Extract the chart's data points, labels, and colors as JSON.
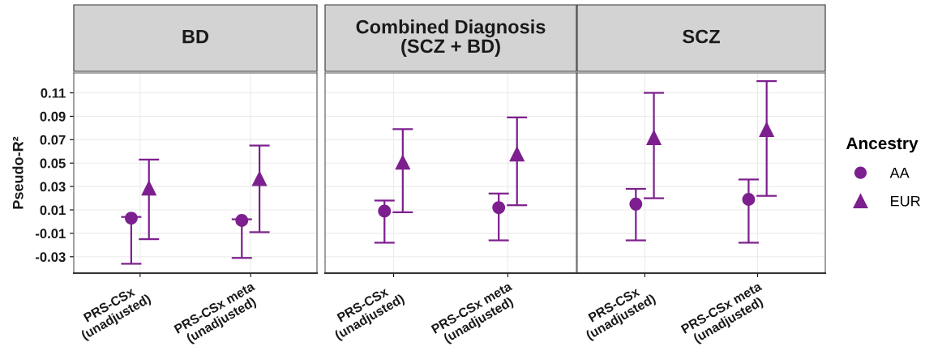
{
  "chart_data": [
    {
      "type": "scatter",
      "title": "BD",
      "ylabel": "Pseudo-R²",
      "categories": [
        "PRS-CSx\n(unadjusted)",
        "PRS-CSx meta\n(unadjusted)"
      ],
      "ylim": [
        -0.044,
        0.127
      ],
      "yticks": [
        -0.03,
        -0.01,
        0.01,
        0.03,
        0.05,
        0.07,
        0.09,
        0.11
      ],
      "grid": true,
      "series": [
        {
          "color": "#7d1f8e",
          "marker": "circle",
          "values": [
            0.003,
            0.001
          ],
          "errors": [
            [
              -0.036,
              0.004
            ],
            [
              -0.031,
              0.002
            ]
          ]
        },
        {
          "color": "#7d1f8e",
          "marker": "triangle",
          "values": [
            0.029,
            0.037
          ],
          "errors": [
            [
              -0.015,
              0.053
            ],
            [
              -0.009,
              0.065
            ]
          ]
        }
      ]
    },
    {
      "type": "scatter",
      "title": "Combined Diagnosis\n(SCZ + BD)",
      "categories": [
        "PRS-CSx\n(unadjusted)",
        "PRS-CSx meta\n(unadjusted)"
      ],
      "ylim": [
        -0.044,
        0.127
      ],
      "yticks": [
        -0.03,
        -0.01,
        0.01,
        0.03,
        0.05,
        0.07,
        0.09,
        0.11
      ],
      "tick_labels": "x",
      "grid": true,
      "series": [
        {
          "color": "#7d1f8e",
          "marker": "circle",
          "values": [
            0.009,
            0.012
          ],
          "errors": [
            [
              -0.018,
              0.018
            ],
            [
              -0.016,
              0.024
            ]
          ]
        },
        {
          "color": "#7d1f8e",
          "marker": "triangle",
          "values": [
            0.051,
            0.058
          ],
          "errors": [
            [
              0.008,
              0.079
            ],
            [
              0.014,
              0.089
            ]
          ]
        }
      ]
    },
    {
      "type": "scatter",
      "title": "SCZ",
      "categories": [
        "PRS-CSx\n(unadjusted)",
        "PRS-CSx meta\n(unadjusted)"
      ],
      "ylim": [
        -0.044,
        0.127
      ],
      "yticks": [
        -0.03,
        -0.01,
        0.01,
        0.03,
        0.05,
        0.07,
        0.09,
        0.11
      ],
      "tick_labels": "x",
      "grid": true,
      "legend": "right",
      "legend_title": "Ancestry",
      "series": [
        {
          "name": "AA",
          "color": "#7d1f8e",
          "marker": "circle",
          "values": [
            0.015,
            0.019
          ],
          "errors": [
            [
              -0.016,
              0.028
            ],
            [
              -0.018,
              0.036
            ]
          ]
        },
        {
          "name": "EUR",
          "color": "#7d1f8e",
          "marker": "triangle",
          "values": [
            0.072,
            0.079
          ],
          "errors": [
            [
              0.02,
              0.11
            ],
            [
              0.022,
              0.12
            ]
          ]
        }
      ]
    }
  ]
}
